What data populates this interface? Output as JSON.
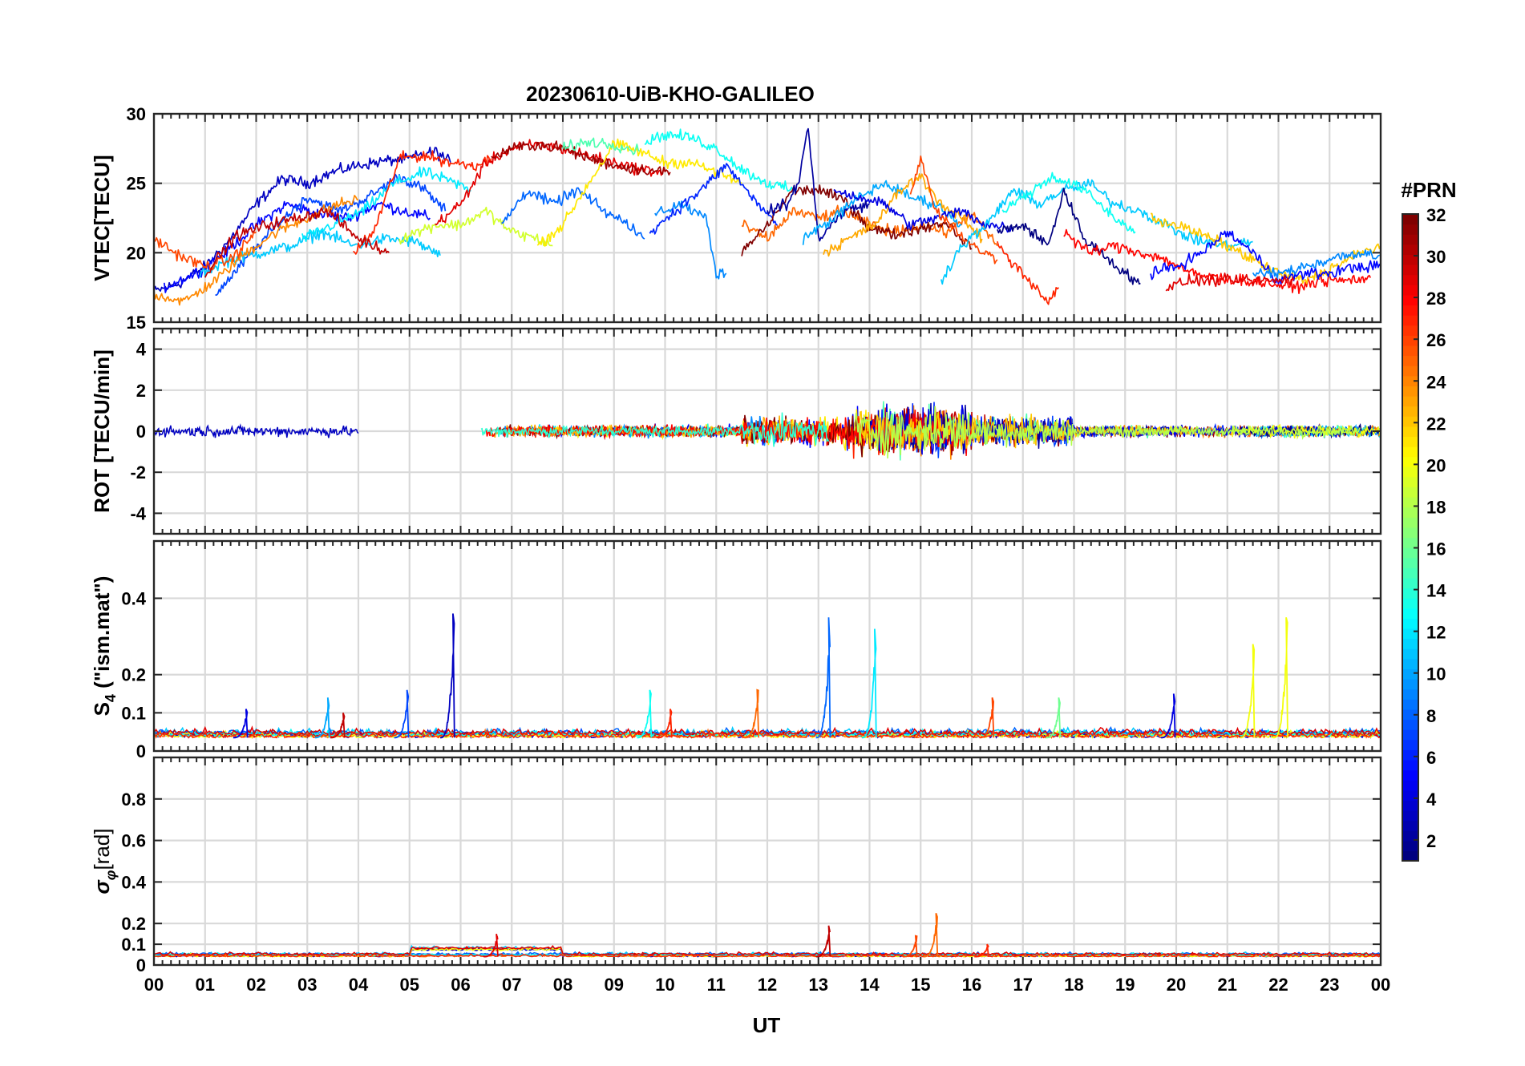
{
  "chart_data": {
    "type": "line",
    "title": "20230610-UiB-KHO-GALILEO",
    "xlabel": "UT",
    "x_ticks": [
      "00",
      "01",
      "02",
      "03",
      "04",
      "05",
      "06",
      "07",
      "08",
      "09",
      "10",
      "11",
      "12",
      "13",
      "14",
      "15",
      "16",
      "17",
      "18",
      "19",
      "20",
      "21",
      "22",
      "23",
      "00"
    ],
    "xlim": [
      0,
      24
    ],
    "colorbar": {
      "label": "#PRN",
      "colormap": "jet",
      "range": [
        1,
        32
      ],
      "ticks": [
        "2",
        "4",
        "6",
        "8",
        "10",
        "12",
        "14",
        "16",
        "18",
        "20",
        "22",
        "24",
        "26",
        "28",
        "30",
        "32"
      ]
    },
    "panels": [
      {
        "name": "vtec",
        "ylabel": "VTEC[TECU]",
        "ylim": [
          15,
          30
        ],
        "y_ticks": [
          "15",
          "20",
          "25",
          "30"
        ],
        "series": [
          {
            "prn": 3,
            "x": [
              0,
              0.5,
              1,
              1.5,
              2,
              2.5,
              3,
              3.5,
              4,
              4.5,
              5,
              5.5,
              5.8
            ],
            "y": [
              17.2,
              17.8,
              19,
              21,
              23.5,
              25.3,
              25,
              25.8,
              26.3,
              26.6,
              26.8,
              27.3,
              26.5
            ]
          },
          {
            "prn": 5,
            "x": [
              0.2,
              0.8,
              1.4,
              2,
              2.6,
              3.2,
              3.8,
              4.4,
              4.9,
              5.4
            ],
            "y": [
              17.5,
              18.5,
              20,
              22,
              23.5,
              22.8,
              22.5,
              23.5,
              23,
              22.5
            ]
          },
          {
            "prn": 7,
            "x": [
              1.2,
              1.8,
              2.4,
              3,
              3.6,
              4.2,
              4.8,
              5.3,
              5.7
            ],
            "y": [
              17,
              19.5,
              22,
              24,
              23,
              24,
              25.5,
              24.5,
              23
            ]
          },
          {
            "prn": 11,
            "x": [
              0.9,
              1.5,
              2.1,
              2.7,
              3.3,
              3.9,
              4.5,
              5.1,
              5.6
            ],
            "y": [
              18.5,
              19.5,
              20,
              20.5,
              21.5,
              20.5,
              21,
              20.8,
              19.8
            ]
          },
          {
            "prn": 12,
            "x": [
              2.9,
              3.5,
              4.1,
              4.7,
              5.3,
              5.9,
              6.2
            ],
            "y": [
              21,
              22,
              23,
              25,
              25.8,
              25,
              24.5
            ]
          },
          {
            "prn": 24,
            "x": [
              0,
              0.6,
              1.2,
              1.8,
              2.4,
              3,
              3.6,
              4
            ],
            "y": [
              17,
              16.5,
              18,
              20,
              21.5,
              22.5,
              23.5,
              23.8
            ]
          },
          {
            "prn": 26,
            "x": [
              0,
              0.5,
              1,
              1.5,
              2
            ],
            "y": [
              21,
              19.8,
              19,
              19.5,
              21.5
            ]
          },
          {
            "prn": 27,
            "x": [
              3.9,
              4.3,
              4.8,
              5.3,
              5.8,
              6.3,
              6.6
            ],
            "y": [
              20,
              21.5,
              26.8,
              27,
              26.5,
              26.3,
              26.8
            ]
          },
          {
            "prn": 30,
            "x": [
              1,
              1.6,
              2.2,
              2.8,
              3.4,
              4,
              4.6
            ],
            "y": [
              18.5,
              21.2,
              22,
              22.5,
              23,
              21,
              20
            ]
          },
          {
            "prn": 19,
            "x": [
              4.8,
              5.5,
              6,
              6.5,
              7,
              7.5,
              7.8
            ],
            "y": [
              21,
              22,
              22,
              23,
              21.5,
              21,
              20.5
            ]
          },
          {
            "prn": 29,
            "x": [
              5.5,
              6,
              6.5,
              7,
              7.5,
              8,
              8.5,
              9,
              9.5,
              10
            ],
            "y": [
              22,
              23.5,
              26.5,
              27.5,
              27.8,
              27.5,
              27,
              26.5,
              26,
              25.8
            ]
          },
          {
            "prn": 31,
            "x": [
              6.6,
              7,
              7.5,
              8,
              8.5,
              9,
              9.5,
              10.1
            ],
            "y": [
              26.8,
              27.5,
              27.8,
              27.5,
              26.8,
              26.3,
              26,
              25.8
            ]
          },
          {
            "prn": 8,
            "x": [
              6.8,
              7.3,
              7.8,
              8.3,
              8.8,
              9.3,
              9.6
            ],
            "y": [
              22,
              24.5,
              23.5,
              24.5,
              23,
              22,
              21
            ]
          },
          {
            "prn": 21,
            "x": [
              7.5,
              8,
              8.5,
              9,
              9.5,
              10,
              10.5,
              11,
              11.5
            ],
            "y": [
              20.5,
              22,
              25,
              27.8,
              27.3,
              26.5,
              26.5,
              25.8,
              25
            ]
          },
          {
            "prn": 15,
            "x": [
              8,
              8.5,
              9,
              9.5
            ],
            "y": [
              27.5,
              28,
              27.8,
              27.3
            ]
          },
          {
            "prn": 13,
            "x": [
              9.6,
              10,
              10.5,
              11,
              11.5,
              12,
              12.5
            ],
            "y": [
              28,
              28.5,
              28.3,
              27.5,
              26,
              25,
              24.5
            ]
          },
          {
            "prn": 9,
            "x": [
              9.8,
              10.3,
              10.8,
              11,
              11.2
            ],
            "y": [
              22.8,
              23.5,
              22.5,
              18.5,
              18.5
            ]
          },
          {
            "prn": 6,
            "x": [
              9.7,
              10.2,
              10.7,
              11.2,
              11.7,
              12.2
            ],
            "y": [
              21.5,
              23,
              24.5,
              26.3,
              24,
              22
            ]
          },
          {
            "prn": 25,
            "x": [
              11.5,
              12,
              12.5,
              13,
              13.5,
              14,
              14.5,
              15,
              15.5,
              16,
              16.5
            ],
            "y": [
              22,
              21,
              23,
              22.5,
              23,
              22,
              21.5,
              22,
              21.5,
              22.8,
              20.5
            ]
          },
          {
            "prn": 32,
            "x": [
              11.5,
              12,
              12.5,
              13,
              13.5,
              14,
              14.5,
              15,
              15.5,
              16
            ],
            "y": [
              20,
              22,
              24.5,
              24.5,
              23.8,
              21.8,
              21.3,
              21.8,
              22.2,
              20.3
            ]
          },
          {
            "prn": 2,
            "x": [
              12,
              12.4,
              12.6,
              12.8,
              13,
              13.5,
              14
            ],
            "y": [
              23,
              23.5,
              25,
              29,
              21,
              23,
              23.5
            ]
          },
          {
            "prn": 10,
            "x": [
              12.7,
              13.3,
              13.8,
              14.3,
              14.8,
              15.3,
              15.8
            ],
            "y": [
              21,
              22.5,
              24,
              25,
              24,
              23.5,
              22
            ]
          },
          {
            "prn": 23,
            "x": [
              13.1,
              13.6,
              14.1,
              14.6,
              15,
              15.4,
              15.8,
              16.2
            ],
            "y": [
              20,
              21,
              22,
              24.5,
              25.5,
              23.5,
              22.5,
              21
            ]
          },
          {
            "prn": 4,
            "x": [
              13.3,
              13.8,
              14.3,
              14.8,
              15.3,
              15.8,
              16.3,
              16.8
            ],
            "y": [
              24.5,
              24,
              23.5,
              22,
              22.5,
              23,
              22,
              21.8
            ]
          },
          {
            "prn": 26,
            "x": [
              14.8,
              15,
              15.3,
              15.6,
              16,
              16.5
            ],
            "y": [
              24,
              27,
              23,
              22,
              20.5,
              19.5
            ]
          },
          {
            "prn": 11,
            "x": [
              15.4,
              15.8,
              16.3,
              16.8,
              17.3,
              17.8,
              18.3,
              18.8,
              19.3,
              19.8,
              20.3,
              21,
              21.5
            ],
            "y": [
              18,
              20.5,
              22,
              24.5,
              23.5,
              24.5,
              25,
              23.5,
              23,
              22,
              21,
              20.5,
              20.8
            ]
          },
          {
            "prn": 1,
            "x": [
              16.5,
              17,
              17.5,
              17.8,
              18.2,
              18.6,
              19,
              19.3
            ],
            "y": [
              21.5,
              22,
              20.5,
              24.5,
              21,
              19.8,
              18.5,
              17.8
            ]
          },
          {
            "prn": 27,
            "x": [
              16.5,
              17,
              17.5,
              17.7
            ],
            "y": [
              20.5,
              18.5,
              16.5,
              17.5
            ]
          },
          {
            "prn": 13,
            "x": [
              16.6,
              17,
              17.6,
              18.2,
              18.8,
              19.2
            ],
            "y": [
              23,
              24,
              25.5,
              24.5,
              22.5,
              21.5
            ]
          },
          {
            "prn": 28,
            "x": [
              17.8,
              18.3,
              18.8,
              19.3,
              19.8,
              20.3,
              20.8,
              21.3,
              21.8,
              22.3,
              22.8,
              23.3,
              23.8
            ],
            "y": [
              21.5,
              20,
              20.5,
              20,
              19.5,
              18.5,
              18.2,
              18,
              17.8,
              17.5,
              18,
              18,
              18.2
            ]
          },
          {
            "prn": 22,
            "x": [
              19.5,
              20,
              20.5,
              21,
              21.5,
              22,
              22.5,
              23,
              23.5,
              24
            ],
            "y": [
              22.5,
              22,
              21.3,
              20.5,
              19.5,
              18.5,
              18,
              18.8,
              19.8,
              20.5
            ]
          },
          {
            "prn": 5,
            "x": [
              19.5,
              20,
              20.5,
              21,
              21.5,
              22,
              22.5,
              23,
              23.5,
              24
            ],
            "y": [
              18.5,
              19,
              20,
              21.5,
              20,
              18,
              18.5,
              18.5,
              19,
              19
            ]
          },
          {
            "prn": 9,
            "x": [
              21.5,
              22,
              22.5,
              23,
              23.5,
              24
            ],
            "y": [
              18.5,
              18.5,
              19,
              19.5,
              20,
              19.8
            ]
          },
          {
            "prn": 29,
            "x": [
              19.8,
              20.3,
              20.8,
              21.3,
              21.8,
              22.3
            ],
            "y": [
              17.5,
              18,
              18,
              18,
              18,
              18
            ]
          }
        ]
      },
      {
        "name": "rot",
        "ylabel": "ROT [TECU/min]",
        "ylim": [
          -5,
          5
        ],
        "y_ticks": [
          "-4",
          "-2",
          "0",
          "2",
          "4"
        ]
      },
      {
        "name": "s4",
        "ylabel": "S4 (\"ism.mat\")",
        "ylabel_main": "S",
        "ylabel_sub": "4",
        "ylabel_rest": " (\"ism.mat\")",
        "ylim": [
          0,
          0.55
        ],
        "y_ticks": [
          "0",
          "0.1",
          "0.2",
          "0.4"
        ],
        "peaks": [
          {
            "prn": 3,
            "x": 5.85,
            "y": 0.36
          },
          {
            "prn": 8,
            "x": 13.2,
            "y": 0.35
          },
          {
            "prn": 12,
            "x": 14.1,
            "y": 0.32
          },
          {
            "prn": 20,
            "x": 22.15,
            "y": 0.35
          },
          {
            "prn": 20,
            "x": 21.5,
            "y": 0.28
          },
          {
            "prn": 25,
            "x": 11.8,
            "y": 0.16
          },
          {
            "prn": 7,
            "x": 4.95,
            "y": 0.16
          },
          {
            "prn": 4,
            "x": 19.95,
            "y": 0.15
          },
          {
            "prn": 10,
            "x": 3.4,
            "y": 0.14
          },
          {
            "prn": 16,
            "x": 17.7,
            "y": 0.14
          },
          {
            "prn": 13,
            "x": 9.7,
            "y": 0.16
          },
          {
            "prn": 30,
            "x": 3.7,
            "y": 0.1
          },
          {
            "prn": 4,
            "x": 1.8,
            "y": 0.11
          },
          {
            "prn": 27,
            "x": 10.1,
            "y": 0.11
          },
          {
            "prn": 26,
            "x": 16.4,
            "y": 0.14
          }
        ]
      },
      {
        "name": "sigma",
        "ylabel": "σφ[rad]",
        "ylabel_main": "σ",
        "ylabel_sub": "φ",
        "ylabel_rest": "[rad]",
        "ylim": [
          0,
          1
        ],
        "y_ticks": [
          "0",
          "0.1",
          "0.2",
          "0.4",
          "0.6",
          "0.8"
        ],
        "peaks": [
          {
            "prn": 25,
            "x": 15.3,
            "y": 0.25
          },
          {
            "prn": 30,
            "x": 13.2,
            "y": 0.19
          },
          {
            "prn": 29,
            "x": 6.7,
            "y": 0.15
          },
          {
            "prn": 26,
            "x": 14.9,
            "y": 0.14
          },
          {
            "prn": 27,
            "x": 16.3,
            "y": 0.1
          }
        ]
      }
    ]
  }
}
